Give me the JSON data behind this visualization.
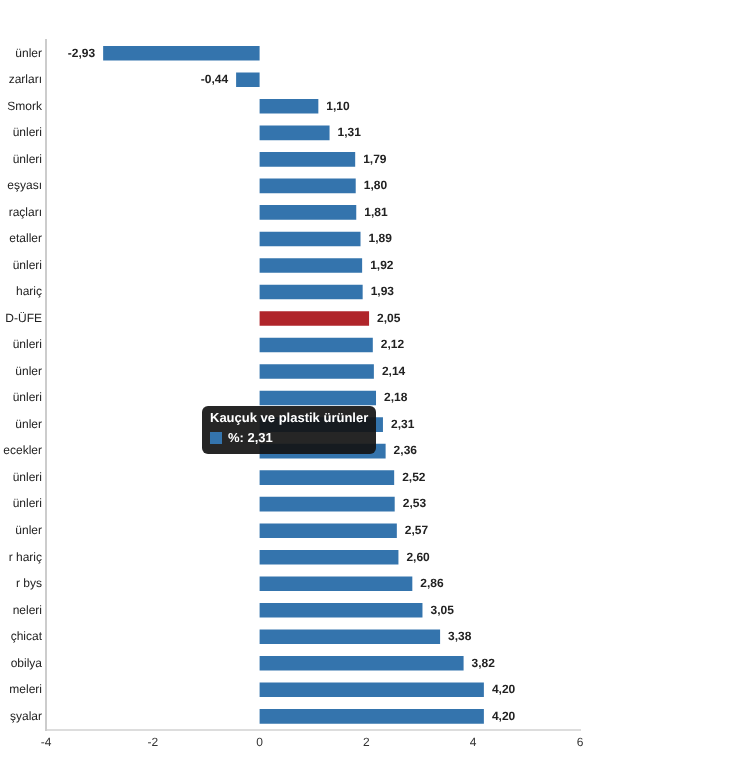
{
  "chart_data": {
    "type": "bar",
    "orientation": "horizontal",
    "categories": [
      "ünler",
      "zarları",
      "Smork",
      "ünleri",
      "ünleri",
      "eşyası",
      "raçları",
      "etaller",
      "ünleri",
      "hariç",
      "D-ÜFE",
      "ünleri",
      "ünler",
      "ünleri",
      "ünler",
      "ecekler",
      "ünleri",
      "ünleri",
      "ünler",
      "r hariç",
      "r bys",
      "neleri",
      "çhicat",
      "obilya",
      "meleri",
      "şyalar"
    ],
    "values": [
      -2.93,
      -0.44,
      1.1,
      1.31,
      1.79,
      1.8,
      1.81,
      1.89,
      1.92,
      1.93,
      2.05,
      2.12,
      2.14,
      2.18,
      2.31,
      2.36,
      2.52,
      2.53,
      2.57,
      2.6,
      2.86,
      3.05,
      3.38,
      3.82,
      4.2,
      4.2
    ],
    "value_labels": [
      "-2,93",
      "-0,44",
      "1,10",
      "1,31",
      "1,79",
      "1,80",
      "1,81",
      "1,89",
      "1,92",
      "1,93",
      "2,05",
      "2,12",
      "2,14",
      "2,18",
      "2,31",
      "2,36",
      "2,52",
      "2,53",
      "2,57",
      "2,60",
      "2,86",
      "3,05",
      "3,38",
      "3,82",
      "4,20",
      "4,20"
    ],
    "colors": [
      "#3474ad",
      "#3474ad",
      "#3474ad",
      "#3474ad",
      "#3474ad",
      "#3474ad",
      "#3474ad",
      "#3474ad",
      "#3474ad",
      "#3474ad",
      "#b0252a",
      "#3474ad",
      "#3474ad",
      "#3474ad",
      "#3474ad",
      "#3474ad",
      "#3474ad",
      "#3474ad",
      "#3474ad",
      "#3474ad",
      "#3474ad",
      "#3474ad",
      "#3474ad",
      "#3474ad",
      "#3474ad",
      "#3474ad"
    ],
    "xlim": [
      -4,
      6
    ],
    "xticks": [
      -4,
      -2,
      0,
      2,
      4,
      6
    ],
    "grid": false,
    "legend": false,
    "annotations": [
      "Kauçuk ve plastik ürünler",
      "%: 2,31"
    ]
  }
}
